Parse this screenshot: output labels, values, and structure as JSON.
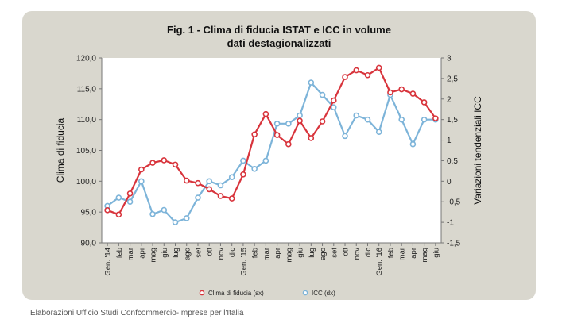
{
  "source_note": "Elaborazioni Ufficio Studi Confcommercio-Imprese per l'Italia",
  "colors": {
    "panel": "#d9d7ce",
    "plot": "#ffffff",
    "series1": "#d8343c",
    "series2": "#7db4d9"
  },
  "chart_data": {
    "type": "line",
    "title_line1": "Fig. 1 - Clima di fiducia ISTAT e ICC in volume",
    "title_line2": "dati destagionalizzati",
    "x": [
      "Gen. '14",
      "feb",
      "mar",
      "apr",
      "mag",
      "giu",
      "lug",
      "ago",
      "set",
      "ott",
      "nov",
      "dic",
      "Gen. '15",
      "feb",
      "mar",
      "apr",
      "mag",
      "giu",
      "lug",
      "ago",
      "set",
      "ott",
      "nov",
      "dic",
      "Gen. '16",
      "feb",
      "mar",
      "apr",
      "mag",
      "giu"
    ],
    "ylabel_left": "Clima di fiducia",
    "ylabel_right": "Variazioni tendenziali ICC",
    "ylim_left": [
      90,
      120
    ],
    "yticks_left": [
      "90,0",
      "95,0",
      "100,0",
      "105,0",
      "110,0",
      "115,0",
      "120,0"
    ],
    "ylim_right": [
      -1.5,
      3
    ],
    "yticks_right": [
      "-1,5",
      "-1",
      "-0,5",
      "0",
      "0,5",
      "1",
      "1,5",
      "2",
      "2,5",
      "3"
    ],
    "legend_position": "bottom",
    "grid": false,
    "series": [
      {
        "name": "Clima di fiducia (sx)",
        "axis": "left",
        "values": [
          95.3,
          94.6,
          98.0,
          101.9,
          103.0,
          103.4,
          102.7,
          100.1,
          99.7,
          98.7,
          97.6,
          97.2,
          101.1,
          107.6,
          110.9,
          107.5,
          106.0,
          109.8,
          107.0,
          109.7,
          113.1,
          116.9,
          118.0,
          117.2,
          118.4,
          114.4,
          114.9,
          114.2,
          112.8,
          110.2
        ]
      },
      {
        "name": "ICC (dx)",
        "axis": "right",
        "values": [
          -0.6,
          -0.4,
          -0.5,
          0.0,
          -0.8,
          -0.7,
          -1.0,
          -0.9,
          -0.4,
          0.0,
          -0.1,
          0.1,
          0.5,
          0.3,
          0.5,
          1.4,
          1.4,
          1.6,
          2.4,
          2.1,
          1.8,
          1.1,
          1.6,
          1.5,
          1.2,
          2.1,
          1.5,
          0.9,
          1.5,
          1.5
        ]
      }
    ]
  }
}
